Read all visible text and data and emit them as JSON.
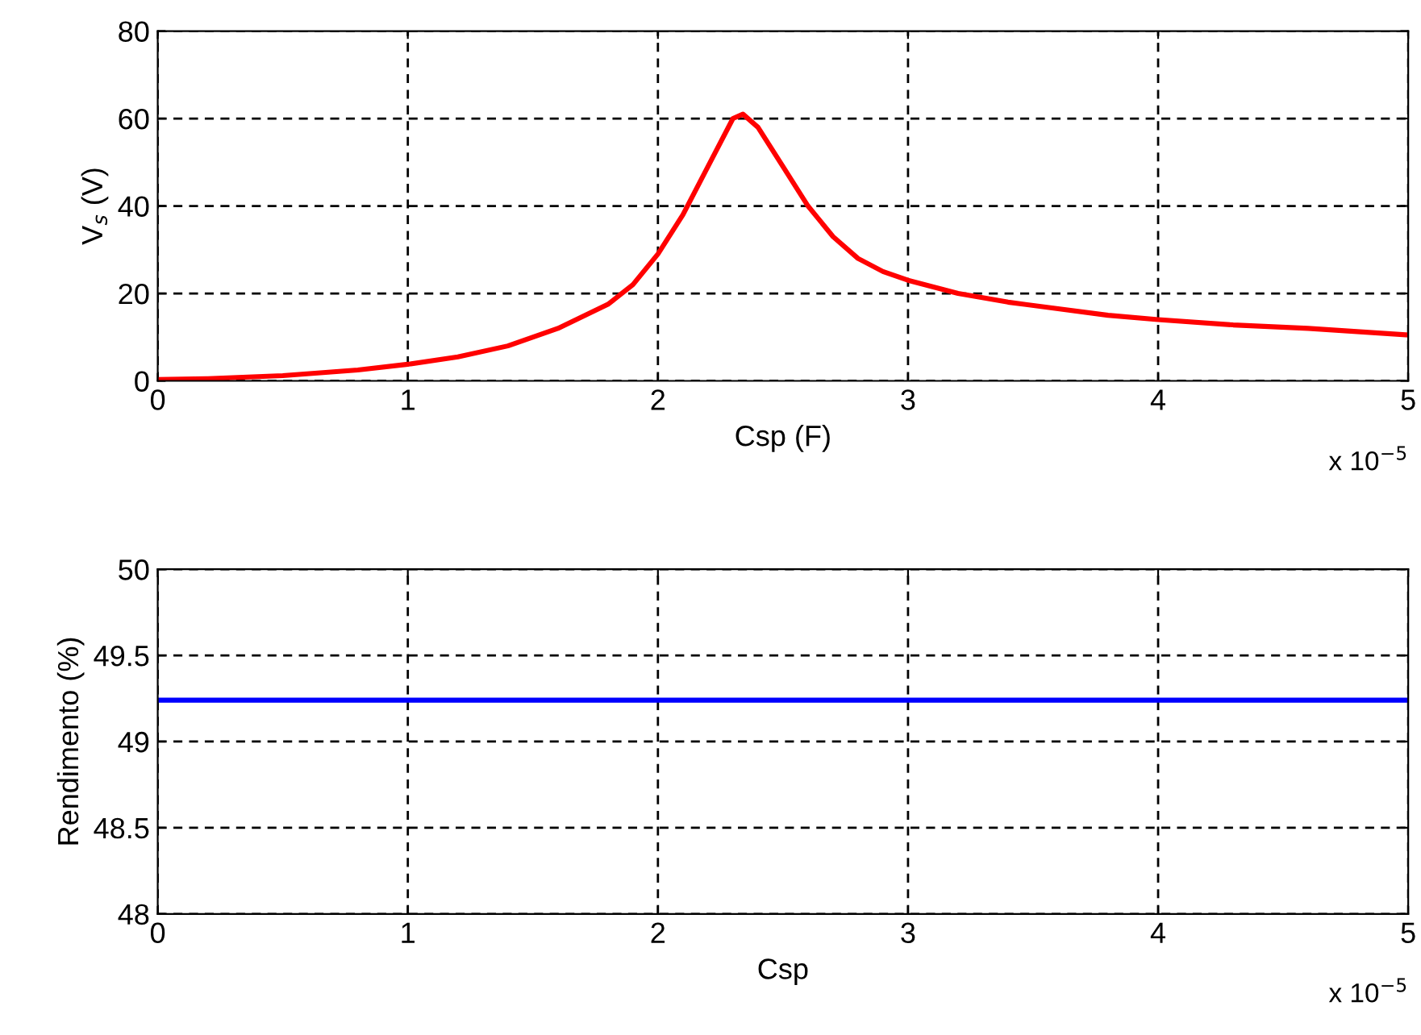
{
  "chart_data": [
    {
      "type": "line",
      "xlabel": "Csp (F)",
      "ylabel": "V$_{s}$ (V)",
      "annotations": [
        "x 10$^{−5}$"
      ],
      "x": [
        0,
        0.2,
        0.5,
        0.8,
        1.0,
        1.2,
        1.4,
        1.6,
        1.8,
        1.9,
        2.0,
        2.1,
        2.2,
        2.3,
        2.34,
        2.4,
        2.5,
        2.6,
        2.7,
        2.8,
        2.9,
        3.0,
        3.2,
        3.4,
        3.6,
        3.8,
        4.0,
        4.3,
        4.6,
        5.0
      ],
      "series": [
        {
          "color": "#ff0000",
          "values": [
            0.3,
            0.5,
            1.2,
            2.5,
            3.8,
            5.5,
            8,
            12,
            17.5,
            22,
            29,
            38,
            49,
            60,
            61,
            58,
            49,
            40,
            33,
            28,
            25,
            23,
            20,
            18,
            16.5,
            15,
            14,
            12.8,
            12,
            10.5
          ]
        }
      ],
      "xlim": [
        0,
        5
      ],
      "xticks": [
        0,
        1,
        2,
        3,
        4,
        5
      ],
      "ylim": [
        0,
        80
      ],
      "yticks": [
        0,
        20,
        40,
        60,
        80
      ],
      "grid": true,
      "line_style": "solid"
    },
    {
      "type": "line",
      "xlabel": "Csp",
      "ylabel": "Rendimento (%)",
      "annotations": [
        "x 10$^{−5}$"
      ],
      "x": [
        0,
        5
      ],
      "series": [
        {
          "color": "#0000ff",
          "values": [
            49.24,
            49.24
          ]
        }
      ],
      "xlim": [
        0,
        5
      ],
      "xticks": [
        0,
        1,
        2,
        3,
        4,
        5
      ],
      "ylim": [
        48,
        50
      ],
      "yticks": [
        48,
        48.5,
        49,
        49.5,
        50
      ],
      "grid": true,
      "line_style": "solid"
    }
  ]
}
